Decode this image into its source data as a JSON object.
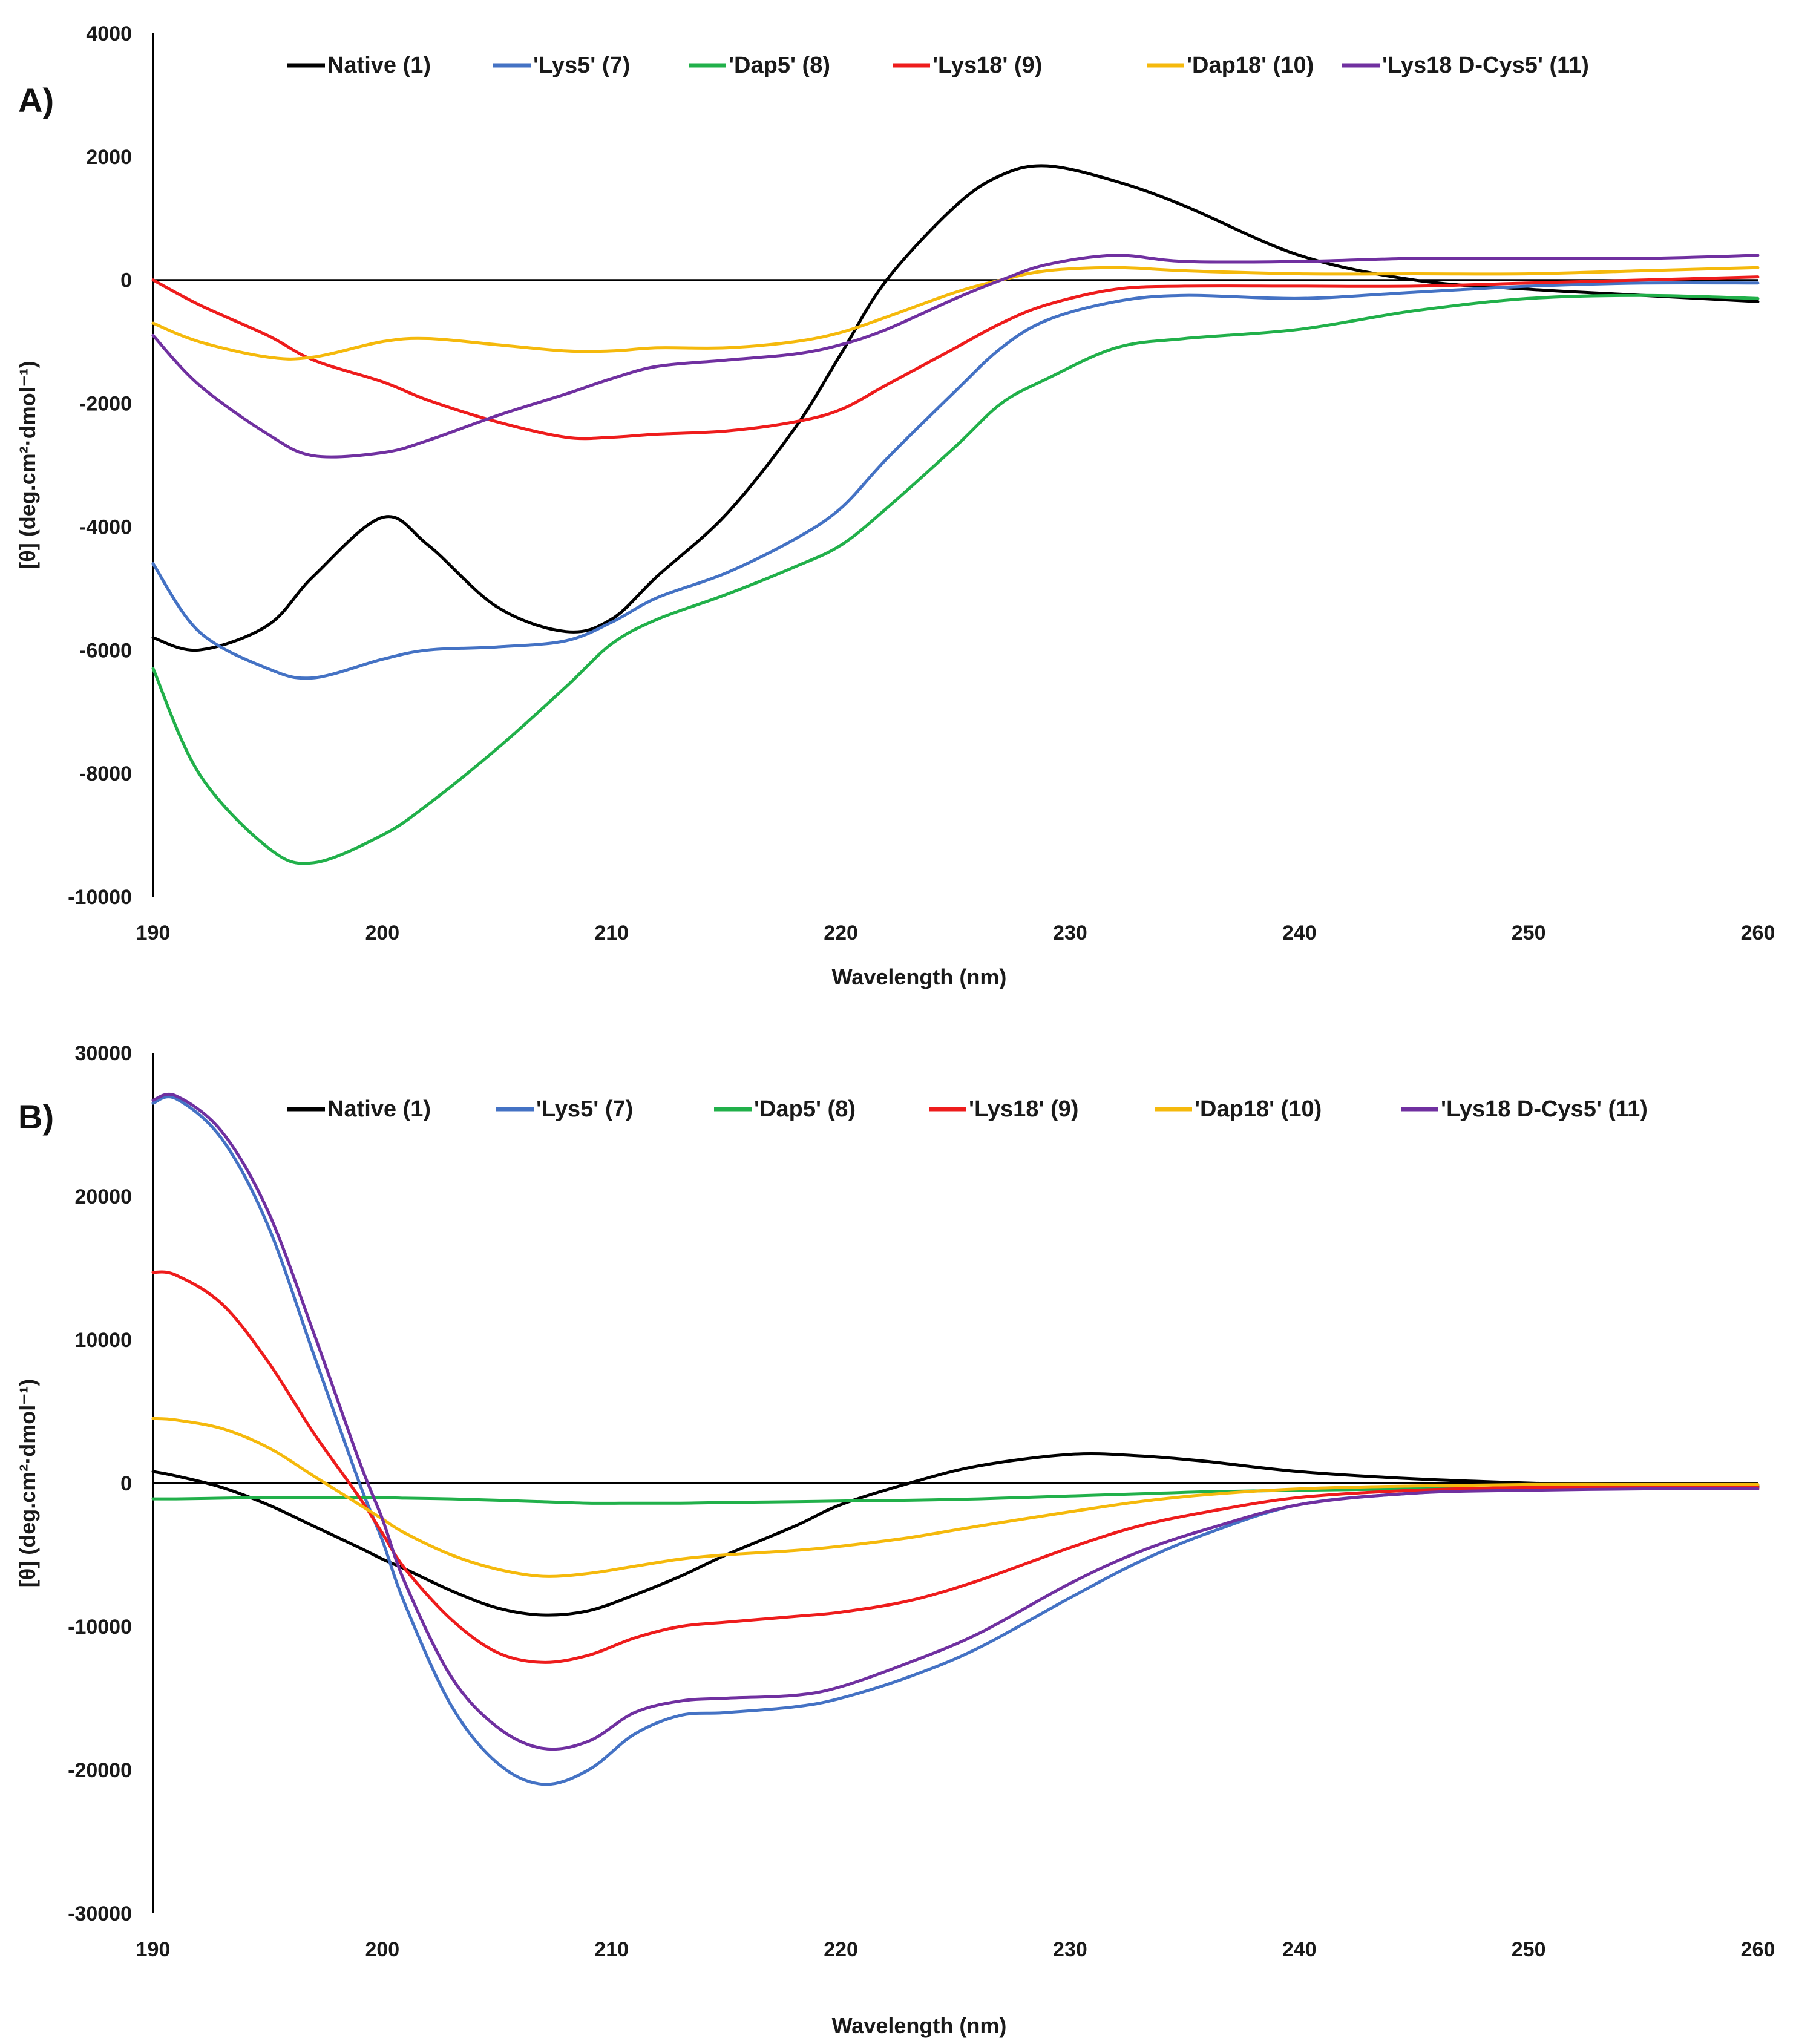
{
  "chart_data": [
    {
      "type": "line",
      "panel_label": "A)",
      "xlabel": "Wavelength (nm)",
      "ylabel": "[θ] (deg.cm²·dmol⁻¹)",
      "xlim": [
        190,
        260
      ],
      "ylim": [
        -10000,
        4000
      ],
      "xticks": [
        "190",
        "200",
        "210",
        "220",
        "230",
        "240",
        "250",
        "260"
      ],
      "yticks": [
        "4000",
        "2000",
        "0",
        "-2000",
        "-4000",
        "-6000",
        "-8000",
        "-10000"
      ],
      "legend_position": "top",
      "x": [
        190,
        192,
        195,
        197,
        200,
        202,
        205,
        208,
        210,
        212,
        215,
        218,
        220,
        222,
        225,
        227,
        229,
        232,
        235,
        240,
        245,
        250,
        255,
        260
      ],
      "series": [
        {
          "name": "Native (1)",
          "color": "#000000",
          "values": [
            -5800,
            -6000,
            -5600,
            -4800,
            -3850,
            -4300,
            -5300,
            -5700,
            -5500,
            -4800,
            -3800,
            -2400,
            -1200,
            0,
            1200,
            1700,
            1850,
            1600,
            1200,
            400,
            0,
            -150,
            -250,
            -350
          ]
        },
        {
          "name": "'Lys5' (7)",
          "color": "#4472c4",
          "values": [
            -4600,
            -5700,
            -6300,
            -6450,
            -6150,
            -6000,
            -5950,
            -5850,
            -5550,
            -5150,
            -4750,
            -4200,
            -3700,
            -2900,
            -1800,
            -1100,
            -650,
            -350,
            -250,
            -300,
            -200,
            -100,
            -50,
            -50
          ]
        },
        {
          "name": "'Dap5' (8)",
          "color": "#21b04a",
          "values": [
            -6300,
            -8000,
            -9200,
            -9450,
            -9000,
            -8500,
            -7600,
            -6600,
            -5900,
            -5500,
            -5100,
            -4650,
            -4300,
            -3700,
            -2700,
            -2000,
            -1600,
            -1100,
            -950,
            -800,
            -500,
            -300,
            -250,
            -300
          ]
        },
        {
          "name": "'Lys18' (9)",
          "color": "#ee1c1c",
          "values": [
            0,
            -400,
            -900,
            -1300,
            -1650,
            -1950,
            -2300,
            -2550,
            -2550,
            -2500,
            -2450,
            -2300,
            -2100,
            -1700,
            -1100,
            -700,
            -400,
            -150,
            -100,
            -100,
            -100,
            -50,
            0,
            50
          ]
        },
        {
          "name": "'Dap18' (10)",
          "color": "#f5b90c",
          "values": [
            -700,
            -1000,
            -1250,
            -1250,
            -1000,
            -950,
            -1050,
            -1150,
            -1150,
            -1100,
            -1100,
            -1000,
            -850,
            -600,
            -200,
            0,
            150,
            200,
            150,
            100,
            100,
            100,
            150,
            200
          ]
        },
        {
          "name": "'Lys18 D-Cys5' (11)",
          "color": "#7030a0",
          "values": [
            -900,
            -1700,
            -2500,
            -2850,
            -2800,
            -2600,
            -2200,
            -1850,
            -1600,
            -1400,
            -1300,
            -1200,
            -1050,
            -800,
            -300,
            0,
            250,
            400,
            300,
            300,
            350,
            350,
            350,
            400
          ]
        }
      ]
    },
    {
      "type": "line",
      "panel_label": "B)",
      "xlabel": "Wavelength (nm)",
      "ylabel": "[θ] (deg.cm²·dmol⁻¹)",
      "xlim": [
        190,
        260
      ],
      "ylim": [
        -30000,
        30000
      ],
      "xticks": [
        "190",
        "200",
        "210",
        "220",
        "230",
        "240",
        "250",
        "260"
      ],
      "yticks": [
        "30000",
        "20000",
        "10000",
        "0",
        "-10000",
        "-20000",
        "-30000"
      ],
      "legend_position": "top",
      "x": [
        190,
        191,
        193,
        195,
        197,
        199,
        200,
        201,
        203,
        205,
        207,
        209,
        211,
        213,
        215,
        218,
        220,
        223,
        226,
        230,
        233,
        236,
        240,
        245,
        250,
        255,
        260
      ],
      "series": [
        {
          "name": "Native (1)",
          "color": "#000000",
          "values": [
            800,
            500,
            -300,
            -1500,
            -3000,
            -4500,
            -5300,
            -6000,
            -7500,
            -8700,
            -9200,
            -8900,
            -7800,
            -6500,
            -5000,
            -3000,
            -1500,
            0,
            1200,
            2000,
            1900,
            1500,
            800,
            300,
            0,
            -200,
            -200
          ]
        },
        {
          "name": "'Lys5' (7)",
          "color": "#4472c4",
          "values": [
            26500,
            26800,
            24000,
            18000,
            9000,
            0,
            -4000,
            -8500,
            -15500,
            -19500,
            -21000,
            -20000,
            -17500,
            -16200,
            -16000,
            -15600,
            -15000,
            -13500,
            -11500,
            -8000,
            -5500,
            -3500,
            -1500,
            -700,
            -400,
            -300,
            -300
          ]
        },
        {
          "name": "'Dap5' (8)",
          "color": "#21b04a",
          "values": [
            -1100,
            -1100,
            -1050,
            -1000,
            -1000,
            -1000,
            -1000,
            -1050,
            -1100,
            -1200,
            -1300,
            -1400,
            -1400,
            -1400,
            -1350,
            -1300,
            -1250,
            -1200,
            -1100,
            -900,
            -750,
            -600,
            -500,
            -400,
            -350,
            -300,
            -300
          ]
        },
        {
          "name": "'Lys18' (9)",
          "color": "#ee1c1c",
          "values": [
            14700,
            14500,
            12500,
            8500,
            3500,
            -1000,
            -3500,
            -6000,
            -9500,
            -11800,
            -12500,
            -12000,
            -10800,
            -10000,
            -9700,
            -9300,
            -9000,
            -8200,
            -6800,
            -4500,
            -3000,
            -2000,
            -1000,
            -500,
            -300,
            -300,
            -300
          ]
        },
        {
          "name": "'Dap18' (10)",
          "color": "#f5b90c",
          "values": [
            4500,
            4400,
            3800,
            2500,
            500,
            -1500,
            -2500,
            -3500,
            -5000,
            -6000,
            -6500,
            -6300,
            -5800,
            -5300,
            -5000,
            -4700,
            -4400,
            -3800,
            -3000,
            -2000,
            -1300,
            -800,
            -400,
            -200,
            -100,
            -100,
            -100
          ]
        },
        {
          "name": "'Lys18 D-Cys5' (11)",
          "color": "#7030a0",
          "values": [
            26700,
            27000,
            24500,
            19000,
            10500,
            1500,
            -2500,
            -7000,
            -13500,
            -17000,
            -18500,
            -18000,
            -16000,
            -15200,
            -15000,
            -14800,
            -14200,
            -12500,
            -10500,
            -7000,
            -4800,
            -3200,
            -1500,
            -700,
            -500,
            -400,
            -400
          ]
        }
      ]
    }
  ]
}
